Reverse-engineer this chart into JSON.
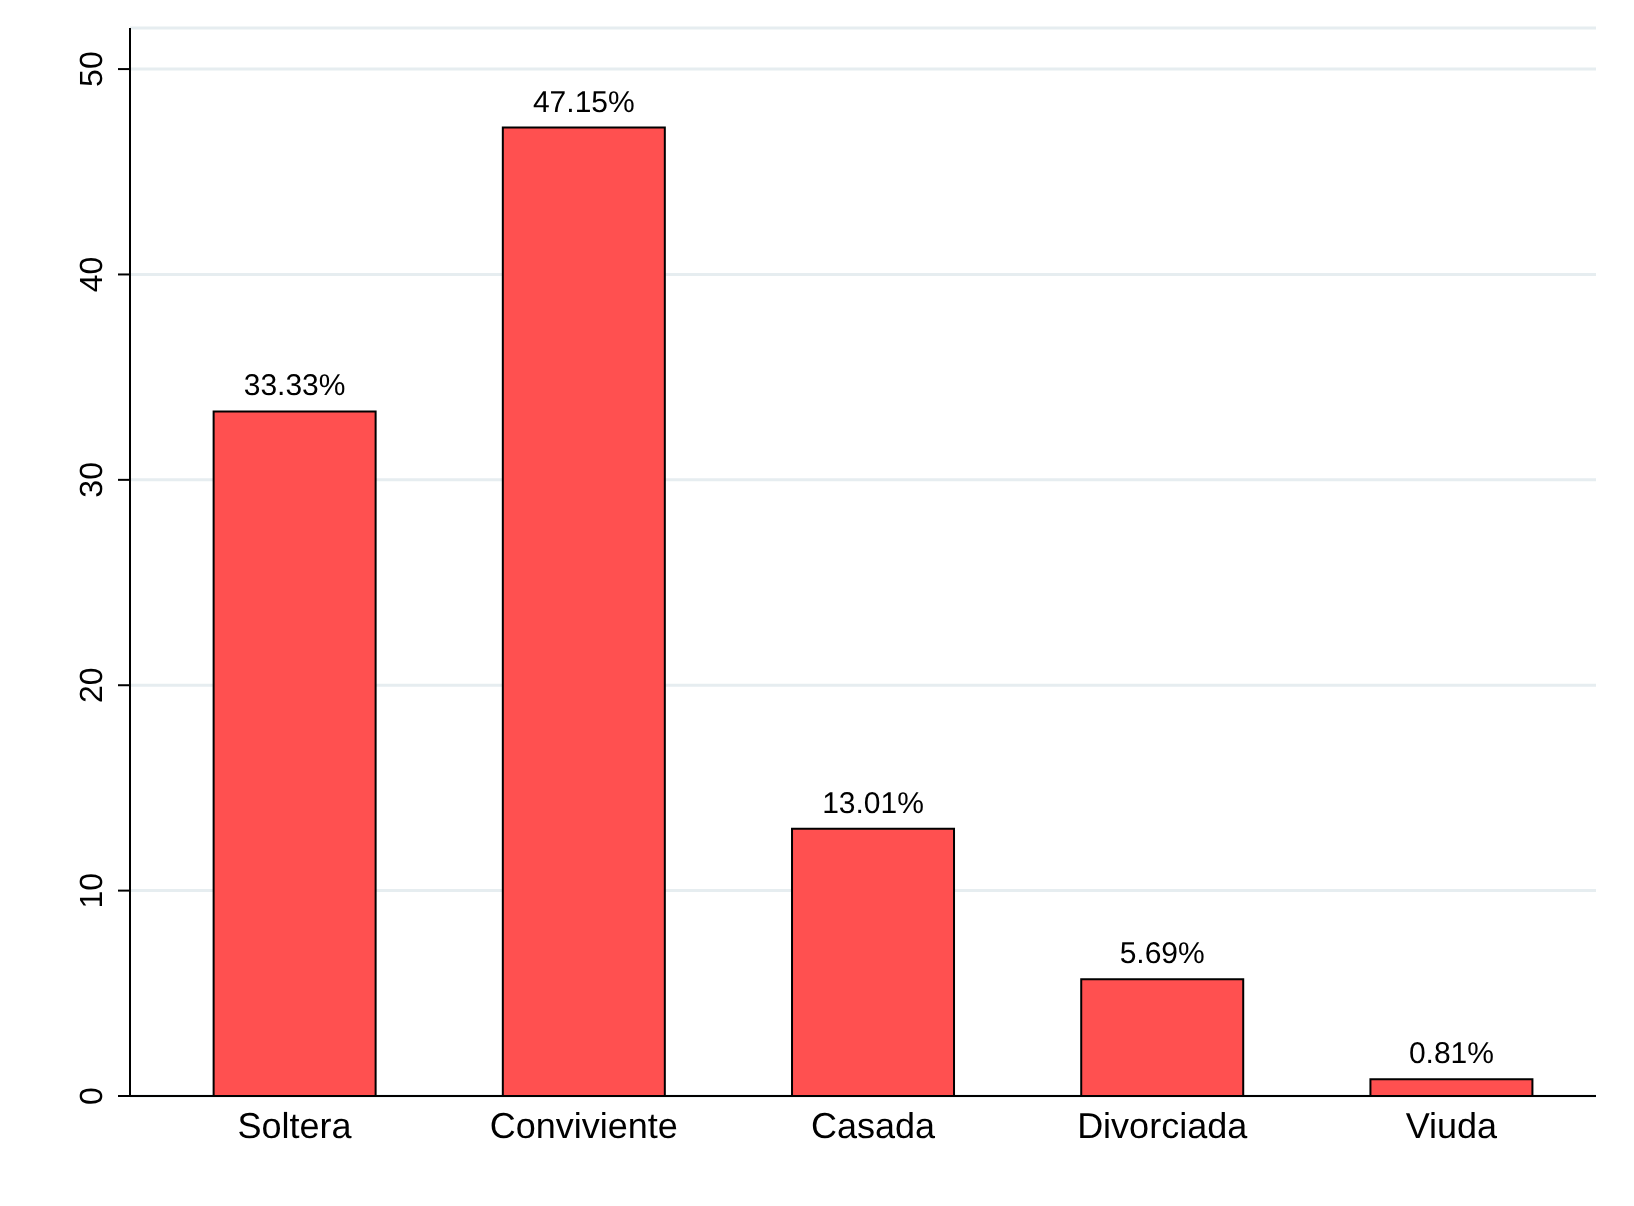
{
  "chart_data": {
    "type": "bar",
    "categories": [
      "Soltera",
      "Conviviente",
      "Casada",
      "Divorciada",
      "Viuda"
    ],
    "values": [
      33.33,
      47.15,
      13.01,
      5.69,
      0.81
    ],
    "value_labels": [
      "33.33%",
      "47.15%",
      "13.01%",
      "5.69%",
      "0.81%"
    ],
    "color": "#ff5050",
    "ylim": [
      0,
      52
    ],
    "yticks": [
      0,
      10,
      20,
      30,
      40,
      50
    ],
    "grid": "y"
  }
}
